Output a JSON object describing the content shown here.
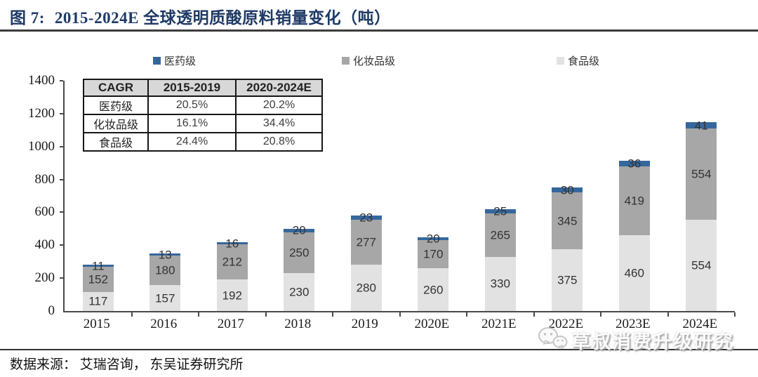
{
  "header": {
    "figure_label": "图 7:",
    "title": "2015-2024E 全球透明质酸原料销量变化（吨）"
  },
  "chart_data": {
    "type": "bar",
    "stacked": true,
    "title": "2015-2024E 全球透明质酸原料销量变化（吨）",
    "categories": [
      "2015",
      "2016",
      "2017",
      "2018",
      "2019",
      "2020E",
      "2021E",
      "2022E",
      "2023E",
      "2024E"
    ],
    "series": [
      {
        "name": "食品级",
        "color": "#E2E2E2",
        "values": [
          117,
          157,
          192,
          230,
          280,
          260,
          330,
          375,
          460,
          554
        ]
      },
      {
        "name": "化妆品级",
        "color": "#A7A7A7",
        "values": [
          152,
          180,
          212,
          250,
          277,
          170,
          265,
          345,
          419,
          554
        ]
      },
      {
        "name": "医药级",
        "color": "#35679D",
        "values": [
          11,
          13,
          16,
          20,
          23,
          20,
          25,
          30,
          36,
          41
        ]
      }
    ],
    "ylim": [
      0,
      1400
    ],
    "yticks": [
      0,
      200,
      400,
      600,
      800,
      1000,
      1200,
      1400
    ],
    "legend_order": [
      "医药级",
      "化妆品级",
      "食品级"
    ],
    "legend_position": "top",
    "grid": false
  },
  "cagr_table": {
    "headers": [
      "CAGR",
      "2015-2019",
      "2020-2024E"
    ],
    "rows": [
      [
        "医药级",
        "20.5%",
        "20.2%"
      ],
      [
        "化妆品级",
        "16.1%",
        "34.4%"
      ],
      [
        "食品级",
        "24.4%",
        "20.8%"
      ]
    ]
  },
  "footer": {
    "source": "数据来源： 艾瑞咨询， 东吴证券研究所"
  },
  "watermark": {
    "icon": "wechat-icon",
    "text": "草叔消费升级研究"
  },
  "colors": {
    "title_navy": "#1E3A66",
    "pharma_blue": "#35679D",
    "cosmetic_gray": "#A7A7A7",
    "food_light_gray": "#E2E2E2",
    "rule_dark": "#3C3C3C"
  }
}
